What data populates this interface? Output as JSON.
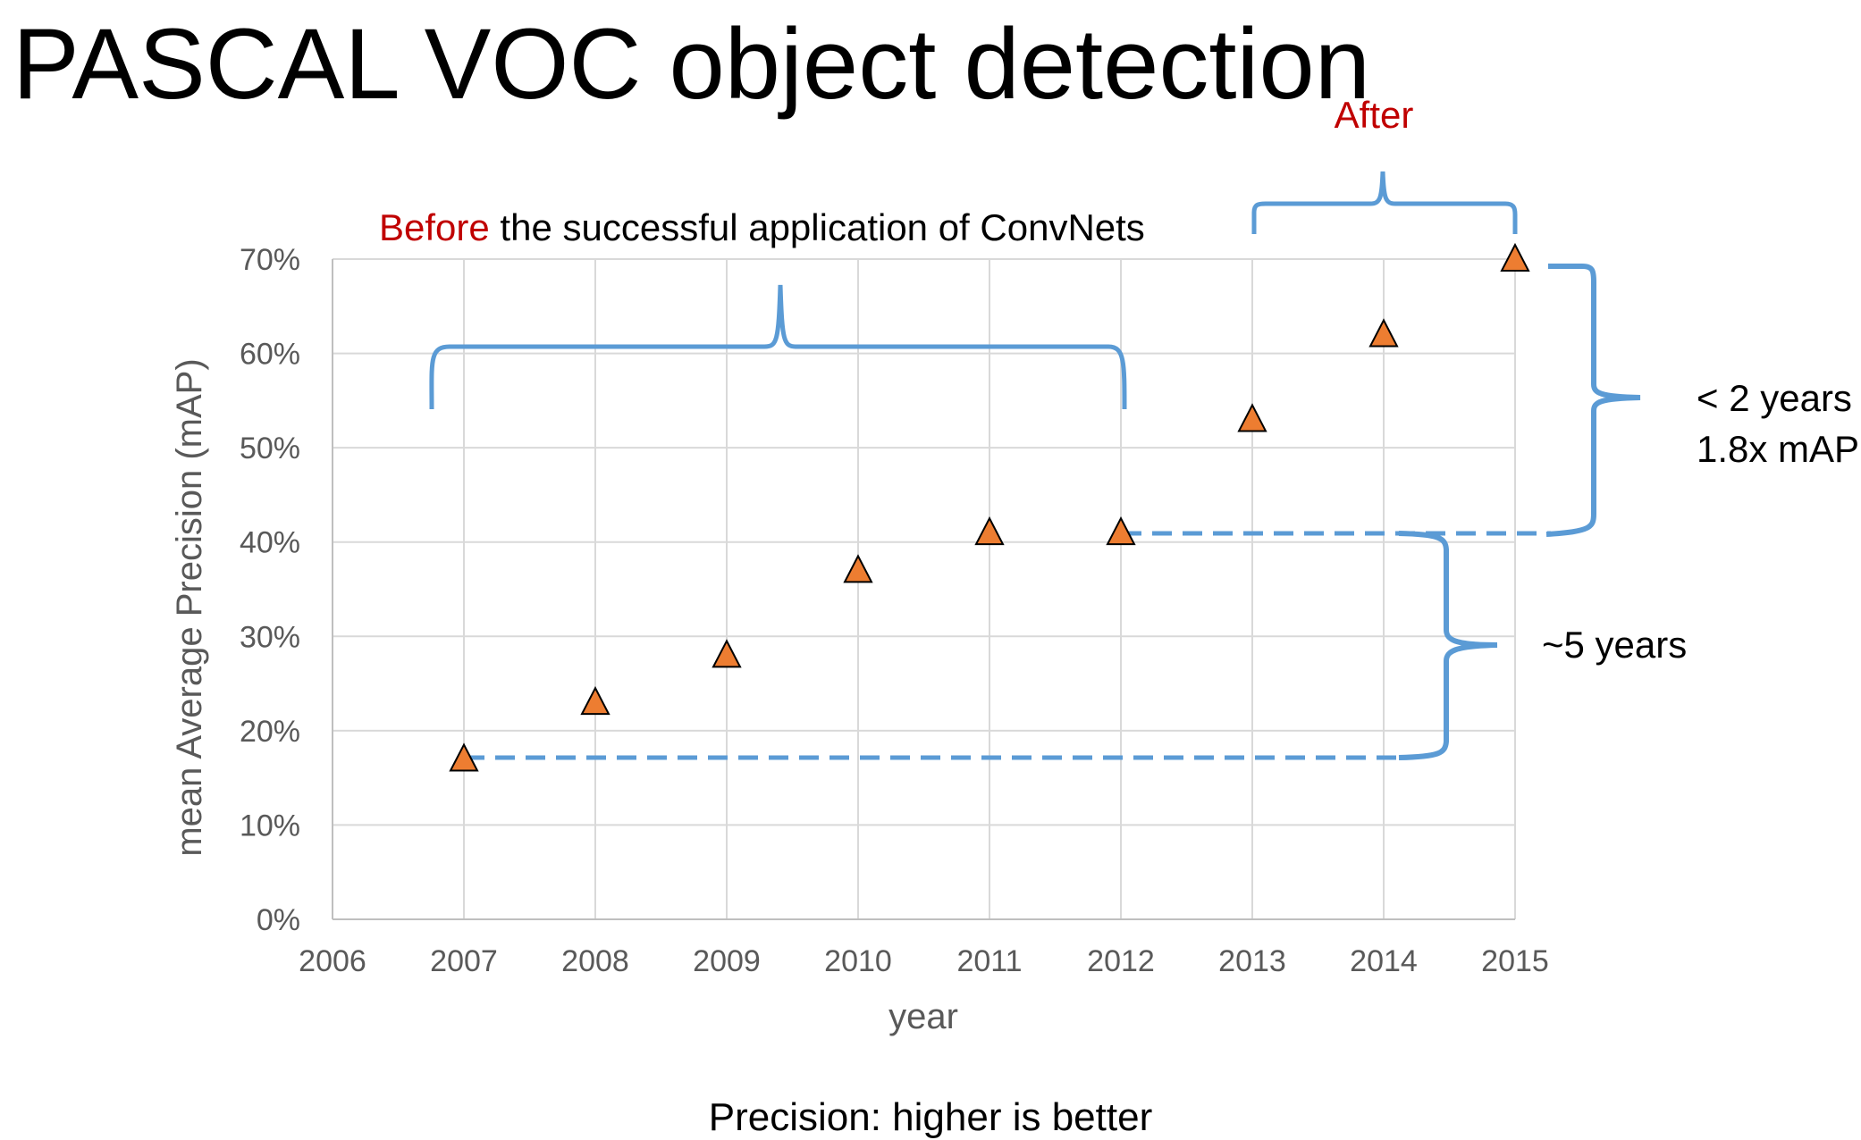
{
  "slide": {
    "title": "PASCAL VOC object detection",
    "caption": "Precision: higher is better"
  },
  "annotations": {
    "after_label": "After",
    "before_word": "Before",
    "before_rest": " the successful application of ConvNets",
    "gap_short_line1": "< 2 years",
    "gap_short_line2": "1.8x mAP",
    "gap_long": "~5 years"
  },
  "colors": {
    "marker_fill": "#ED7D31",
    "marker_stroke": "#000000",
    "bracket": "#5B9BD5",
    "grid": "#D9D9D9",
    "highlight_text": "#C00000"
  },
  "chart_data": {
    "type": "scatter",
    "title": "",
    "xlabel": "year",
    "ylabel": "mean Average Precision (mAP)",
    "xlim": [
      2006,
      2015
    ],
    "ylim": [
      0,
      70
    ],
    "x_ticks": [
      2006,
      2007,
      2008,
      2009,
      2010,
      2011,
      2012,
      2013,
      2014,
      2015
    ],
    "y_ticks": [
      "0%",
      "10%",
      "20%",
      "30%",
      "40%",
      "50%",
      "60%",
      "70%"
    ],
    "grid": true,
    "marker": "triangle",
    "series": [
      {
        "x": [
          2007,
          2008,
          2009,
          2010,
          2011,
          2012,
          2013,
          2014,
          2015
        ],
        "y": [
          17,
          23,
          28,
          37,
          41,
          41,
          53,
          62,
          70
        ]
      }
    ]
  }
}
